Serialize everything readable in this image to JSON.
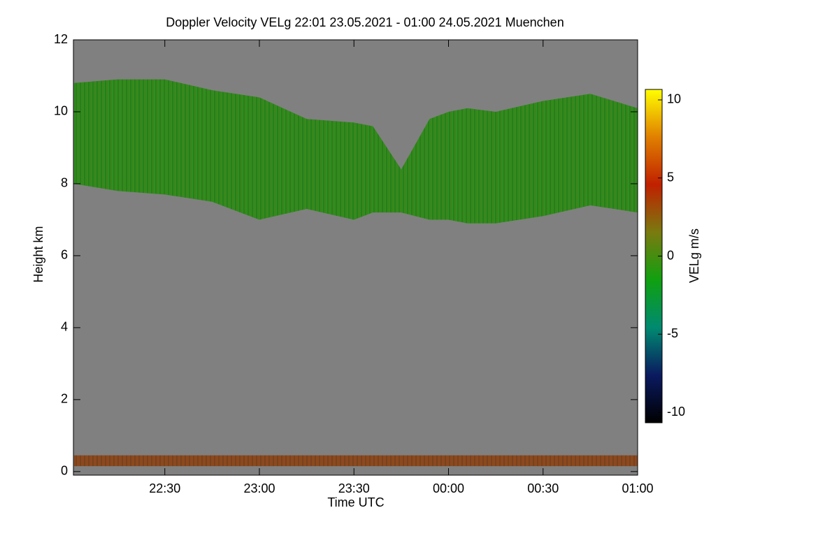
{
  "chart_data": {
    "type": "heatmap",
    "title": "Doppler Velocity VELg   22:01 23.05.2021 - 01:00 24.05.2021 Muenchen",
    "x_label": "Time UTC",
    "y_label": "Height km",
    "colorbar_label": "VELg m/s",
    "background": "#808080",
    "xlim": [
      22.0167,
      25
    ],
    "xticks": [
      {
        "value": 22.5,
        "label": "22:30"
      },
      {
        "value": 23,
        "label": "23:00"
      },
      {
        "value": 23.5,
        "label": "23:30"
      },
      {
        "value": 24,
        "label": "00:00"
      },
      {
        "value": 24.5,
        "label": "00:30"
      },
      {
        "value": 25,
        "label": "01:00"
      }
    ],
    "ylim": [
      -0.1,
      12
    ],
    "yticks": [
      0,
      2,
      4,
      6,
      8,
      10,
      12
    ],
    "clim": [
      -10.67,
      10.67
    ],
    "cticks": [
      -10,
      -5,
      0,
      5,
      10
    ],
    "colormap": [
      "#000000",
      "#0a1a60",
      "#008a70",
      "#10a010",
      "#7a7a10",
      "#c02000",
      "#e08000",
      "#ffff00"
    ],
    "layers": [
      {
        "color": "#2e8f1e",
        "x": [
          22.02,
          22.25,
          22.5,
          22.75,
          23.0,
          23.25,
          23.5,
          23.6,
          23.75,
          23.9,
          24.0,
          24.1,
          24.25,
          24.5,
          24.75,
          25.0
        ],
        "upper": [
          10.8,
          10.9,
          10.9,
          10.6,
          10.4,
          9.8,
          9.7,
          9.6,
          8.4,
          9.8,
          10.0,
          10.1,
          10.0,
          10.3,
          10.5,
          10.1
        ],
        "lower": [
          8.0,
          7.8,
          7.7,
          7.5,
          7.0,
          7.3,
          7.0,
          7.2,
          7.2,
          7.0,
          7.0,
          6.9,
          6.9,
          7.1,
          7.4,
          7.2
        ]
      },
      {
        "color": "#8a4a20",
        "x": [
          22.02,
          25.0
        ],
        "upper": [
          0.45,
          0.45
        ],
        "lower": [
          0.15,
          0.15
        ]
      }
    ]
  }
}
